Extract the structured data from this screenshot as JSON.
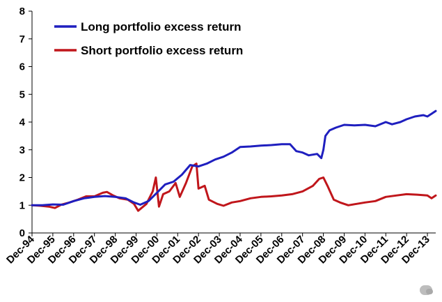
{
  "chart_data": {
    "type": "line",
    "title": "",
    "xlabel": "",
    "ylabel": "",
    "ylim": [
      0,
      8
    ],
    "yticks": [
      0,
      1,
      2,
      3,
      4,
      5,
      6,
      7,
      8
    ],
    "xlim": [
      0,
      19.4
    ],
    "x_tick_labels": [
      "Dec-94",
      "Dec-95",
      "Dec-96",
      "Dec-97",
      "Dec-98",
      "Dec-99",
      "Dec-00",
      "Dec-01",
      "Dec-02",
      "Dec-03",
      "Dec-04",
      "Dec-05",
      "Dec-06",
      "Dec-07",
      "Dec-08",
      "Dec-09",
      "Dec-10",
      "Dec-11",
      "Dec-12",
      "Dec-13"
    ],
    "grid": false,
    "legend_position": "top-left",
    "series": [
      {
        "name": "Long portfolio excess return",
        "color": "#1f1fbf",
        "points": [
          [
            0.0,
            1.0
          ],
          [
            0.5,
            1.0
          ],
          [
            1.0,
            1.03
          ],
          [
            1.5,
            1.02
          ],
          [
            2.0,
            1.15
          ],
          [
            2.5,
            1.25
          ],
          [
            3.0,
            1.3
          ],
          [
            3.5,
            1.33
          ],
          [
            4.0,
            1.3
          ],
          [
            4.5,
            1.25
          ],
          [
            4.9,
            1.1
          ],
          [
            5.2,
            1.02
          ],
          [
            5.6,
            1.15
          ],
          [
            6.0,
            1.45
          ],
          [
            6.4,
            1.75
          ],
          [
            6.8,
            1.85
          ],
          [
            7.2,
            2.1
          ],
          [
            7.6,
            2.45
          ],
          [
            8.0,
            2.4
          ],
          [
            8.4,
            2.5
          ],
          [
            8.8,
            2.65
          ],
          [
            9.2,
            2.75
          ],
          [
            9.6,
            2.9
          ],
          [
            10.0,
            3.1
          ],
          [
            10.5,
            3.12
          ],
          [
            11.0,
            3.15
          ],
          [
            11.5,
            3.17
          ],
          [
            12.0,
            3.2
          ],
          [
            12.4,
            3.2
          ],
          [
            12.7,
            2.95
          ],
          [
            13.0,
            2.9
          ],
          [
            13.3,
            2.8
          ],
          [
            13.7,
            2.85
          ],
          [
            13.9,
            2.7
          ],
          [
            14.0,
            3.0
          ],
          [
            14.1,
            3.5
          ],
          [
            14.3,
            3.7
          ],
          [
            14.6,
            3.8
          ],
          [
            15.0,
            3.9
          ],
          [
            15.5,
            3.88
          ],
          [
            16.0,
            3.9
          ],
          [
            16.5,
            3.85
          ],
          [
            17.0,
            4.0
          ],
          [
            17.3,
            3.92
          ],
          [
            17.7,
            4.0
          ],
          [
            18.0,
            4.1
          ],
          [
            18.4,
            4.2
          ],
          [
            18.8,
            4.25
          ],
          [
            19.0,
            4.2
          ],
          [
            19.2,
            4.3
          ],
          [
            19.4,
            4.4
          ]
        ]
      },
      {
        "name": "Short portfolio excess return",
        "color": "#c0161b",
        "points": [
          [
            0.0,
            1.0
          ],
          [
            0.4,
            0.98
          ],
          [
            0.8,
            0.95
          ],
          [
            1.1,
            0.9
          ],
          [
            1.4,
            1.02
          ],
          [
            1.8,
            1.1
          ],
          [
            2.2,
            1.2
          ],
          [
            2.6,
            1.32
          ],
          [
            3.0,
            1.32
          ],
          [
            3.4,
            1.45
          ],
          [
            3.6,
            1.48
          ],
          [
            3.9,
            1.35
          ],
          [
            4.2,
            1.25
          ],
          [
            4.6,
            1.2
          ],
          [
            4.9,
            1.05
          ],
          [
            5.1,
            0.8
          ],
          [
            5.5,
            1.05
          ],
          [
            5.8,
            1.5
          ],
          [
            5.95,
            2.0
          ],
          [
            6.1,
            0.95
          ],
          [
            6.3,
            1.4
          ],
          [
            6.6,
            1.5
          ],
          [
            6.9,
            1.8
          ],
          [
            7.1,
            1.3
          ],
          [
            7.4,
            1.8
          ],
          [
            7.7,
            2.4
          ],
          [
            7.9,
            2.5
          ],
          [
            8.0,
            1.6
          ],
          [
            8.3,
            1.7
          ],
          [
            8.5,
            1.2
          ],
          [
            8.9,
            1.05
          ],
          [
            9.2,
            0.98
          ],
          [
            9.6,
            1.1
          ],
          [
            10.0,
            1.15
          ],
          [
            10.5,
            1.25
          ],
          [
            11.0,
            1.3
          ],
          [
            11.5,
            1.32
          ],
          [
            12.0,
            1.35
          ],
          [
            12.5,
            1.4
          ],
          [
            13.0,
            1.5
          ],
          [
            13.5,
            1.7
          ],
          [
            13.8,
            1.95
          ],
          [
            14.0,
            2.0
          ],
          [
            14.2,
            1.7
          ],
          [
            14.5,
            1.2
          ],
          [
            14.8,
            1.1
          ],
          [
            15.2,
            1.0
          ],
          [
            15.6,
            1.05
          ],
          [
            16.0,
            1.1
          ],
          [
            16.5,
            1.15
          ],
          [
            17.0,
            1.3
          ],
          [
            17.5,
            1.35
          ],
          [
            18.0,
            1.4
          ],
          [
            18.5,
            1.38
          ],
          [
            19.0,
            1.35
          ],
          [
            19.2,
            1.25
          ],
          [
            19.4,
            1.35
          ]
        ]
      }
    ]
  }
}
